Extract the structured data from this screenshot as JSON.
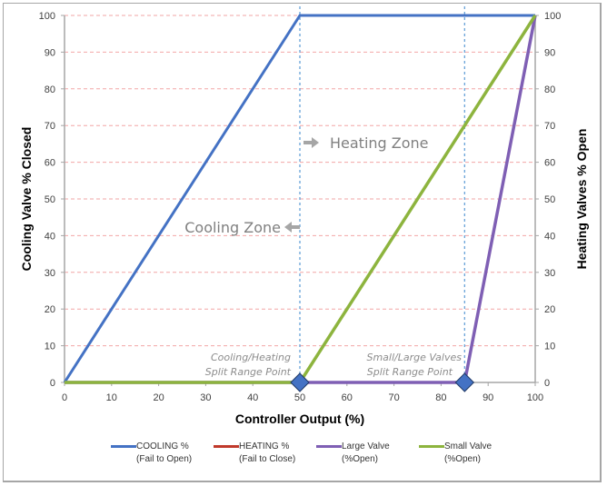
{
  "chart_data": {
    "type": "line",
    "title": "",
    "xlabel": "Controller Output (%)",
    "ylabel": "Cooling Valve % Closed",
    "ylabel_right": "Heating Valves % Open",
    "xlim": [
      0,
      100
    ],
    "ylim": [
      0,
      100
    ],
    "x_ticks": [
      0,
      10,
      20,
      30,
      40,
      50,
      60,
      70,
      80,
      90,
      100
    ],
    "y_ticks": [
      0,
      10,
      20,
      30,
      40,
      50,
      60,
      70,
      80,
      90,
      100
    ],
    "grid": "horizontal dashed (pink)",
    "legend_position": "bottom",
    "series": [
      {
        "name": "COOLING % (Fail to Open)",
        "color": "#4472c4",
        "x": [
          0,
          50,
          100
        ],
        "y": [
          0,
          100,
          100
        ]
      },
      {
        "name": "HEATING % (Fail to Close)",
        "color": "#c0392b",
        "x": [],
        "y": []
      },
      {
        "name": "Large Valve (%Open)",
        "color": "#7f5fb4",
        "x": [
          0,
          85,
          100
        ],
        "y": [
          0,
          0,
          100
        ]
      },
      {
        "name": "Small Valve (%Open)",
        "color": "#8db43e",
        "x": [
          0,
          50,
          100
        ],
        "y": [
          0,
          0,
          100
        ]
      }
    ],
    "reference_lines": [
      {
        "axis": "x",
        "value": 50,
        "style": "dotted",
        "color": "#5b9bd5"
      },
      {
        "axis": "x",
        "value": 85,
        "style": "dotted",
        "color": "#5b9bd5"
      }
    ],
    "markers": [
      {
        "x": 50,
        "y": 0,
        "shape": "diamond",
        "color": "#4472c4",
        "label": "Cooling/Heating Split Range Point"
      },
      {
        "x": 85,
        "y": 0,
        "shape": "diamond",
        "color": "#4472c4",
        "label": "Small/Large Valves Split Range Point"
      }
    ],
    "annotations": [
      {
        "text": "Heating Zone",
        "arrow": "right",
        "x": 50,
        "y": 65
      },
      {
        "text": "Cooling Zone",
        "arrow": "left",
        "x": 50,
        "y": 42
      }
    ]
  },
  "labels": {
    "xlabel": "Controller Output (%)",
    "ylabel_left": "Cooling Valve % Closed",
    "ylabel_right": "Heating Valves % Open",
    "heating_zone": "Heating Zone",
    "cooling_zone": "Cooling Zone",
    "split1_line1": "Cooling/Heating",
    "split1_line2": "Split Range Point",
    "split2_line1": "Small/Large Valves",
    "split2_line2": "Split Range Point"
  },
  "legend": [
    {
      "label": "COOLING %\n(Fail to Open)",
      "color": "#4472c4"
    },
    {
      "label": "HEATING %\n(Fail to Close)",
      "color": "#c0392b"
    },
    {
      "label": "Large Valve\n(%Open)",
      "color": "#7f5fb4"
    },
    {
      "label": "Small Valve\n(%Open)",
      "color": "#8db43e"
    }
  ]
}
